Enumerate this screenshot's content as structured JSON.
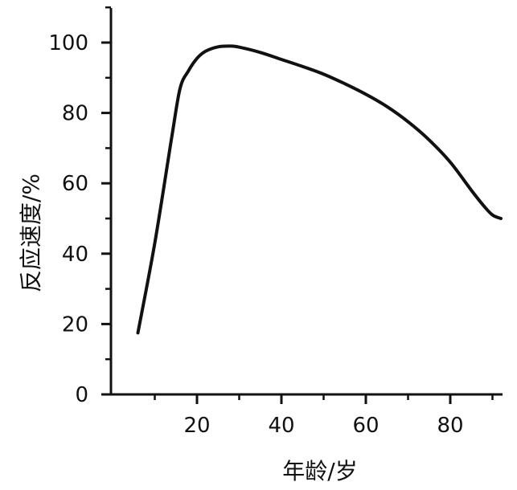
{
  "chart_data": {
    "type": "line",
    "title": "",
    "xlabel": "年龄/岁",
    "ylabel": "反应速度/%",
    "xlim": [
      0,
      93
    ],
    "ylim": [
      0,
      110
    ],
    "x_ticks": [
      20,
      40,
      60,
      80
    ],
    "y_ticks": [
      0,
      20,
      40,
      60,
      80,
      100
    ],
    "x_minor_ticks": [
      10,
      30,
      50,
      70,
      90
    ],
    "y_minor_ticks": [
      10,
      30,
      50,
      70,
      90,
      110
    ],
    "grid": false,
    "legend": "none",
    "series": [
      {
        "x": [
          6,
          10,
          14,
          16,
          18,
          20,
          22,
          25,
          28,
          30,
          35,
          40,
          45,
          50,
          55,
          60,
          65,
          70,
          75,
          80,
          85,
          88,
          90,
          92
        ],
        "y": [
          17.5,
          43,
          73,
          87,
          92,
          95.5,
          97.5,
          98.8,
          99.0,
          98.7,
          97.2,
          95.2,
          93.2,
          91.0,
          88.3,
          85.3,
          81.8,
          77.5,
          72.3,
          66,
          58,
          53.5,
          51,
          50
        ]
      }
    ]
  }
}
